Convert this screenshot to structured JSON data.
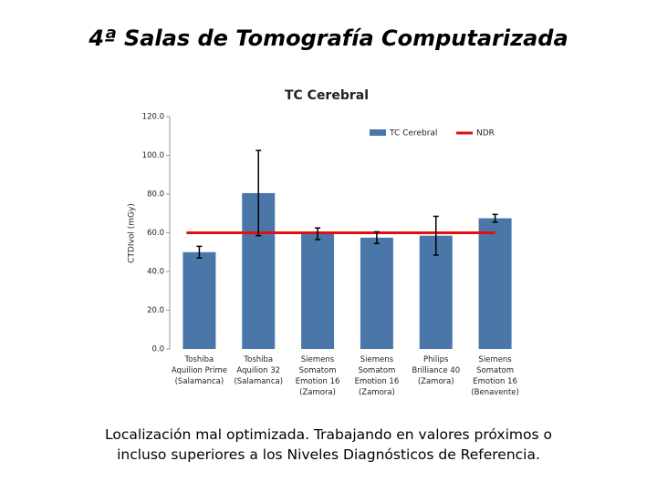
{
  "page_title": "4ª Salas de Tomografía Computarizada",
  "chart_data": {
    "type": "bar",
    "title": "TC Cerebral",
    "y_label": "CTDIvol (mGy)",
    "categories": [
      "Toshiba\nAquilion Prime\n(Salamanca)",
      "Toshiba\nAquilion 32\n(Salamanca)",
      "Siemens\nSomatom\nEmotion 16\n(Zamora)",
      "Siemens\nSomatom\nEmotion 16\n(Zamora)",
      "Philips\nBrilliance 40\n(Zamora)",
      "Siemens\nSomatom\nEmotion 16\n(Benavente)"
    ],
    "series": [
      {
        "name": "TC Cerebral",
        "color": "#4a76a8",
        "values": [
          50,
          80.5,
          59.5,
          57.5,
          58.5,
          67.5
        ],
        "errors": [
          3,
          22,
          3,
          3,
          10,
          2
        ]
      }
    ],
    "reference_lines": [
      {
        "name": "NDR",
        "color": "#e01010",
        "value": 60
      }
    ],
    "ylim": [
      0,
      120
    ],
    "yticks": [
      {
        "value": 0,
        "label": "0.0"
      },
      {
        "value": 20,
        "label": "20.0"
      },
      {
        "value": 40,
        "label": "40.0"
      },
      {
        "value": 60,
        "label": "60.0"
      },
      {
        "value": 80,
        "label": "80.0"
      },
      {
        "value": 100,
        "label": "100.0"
      },
      {
        "value": 120,
        "label": "120.0"
      }
    ],
    "grid": false,
    "legend": "top-right"
  },
  "caption": "Localización mal optimizada. Trabajando en valores próximos o incluso superiores a los Niveles Diagnósticos de Referencia."
}
